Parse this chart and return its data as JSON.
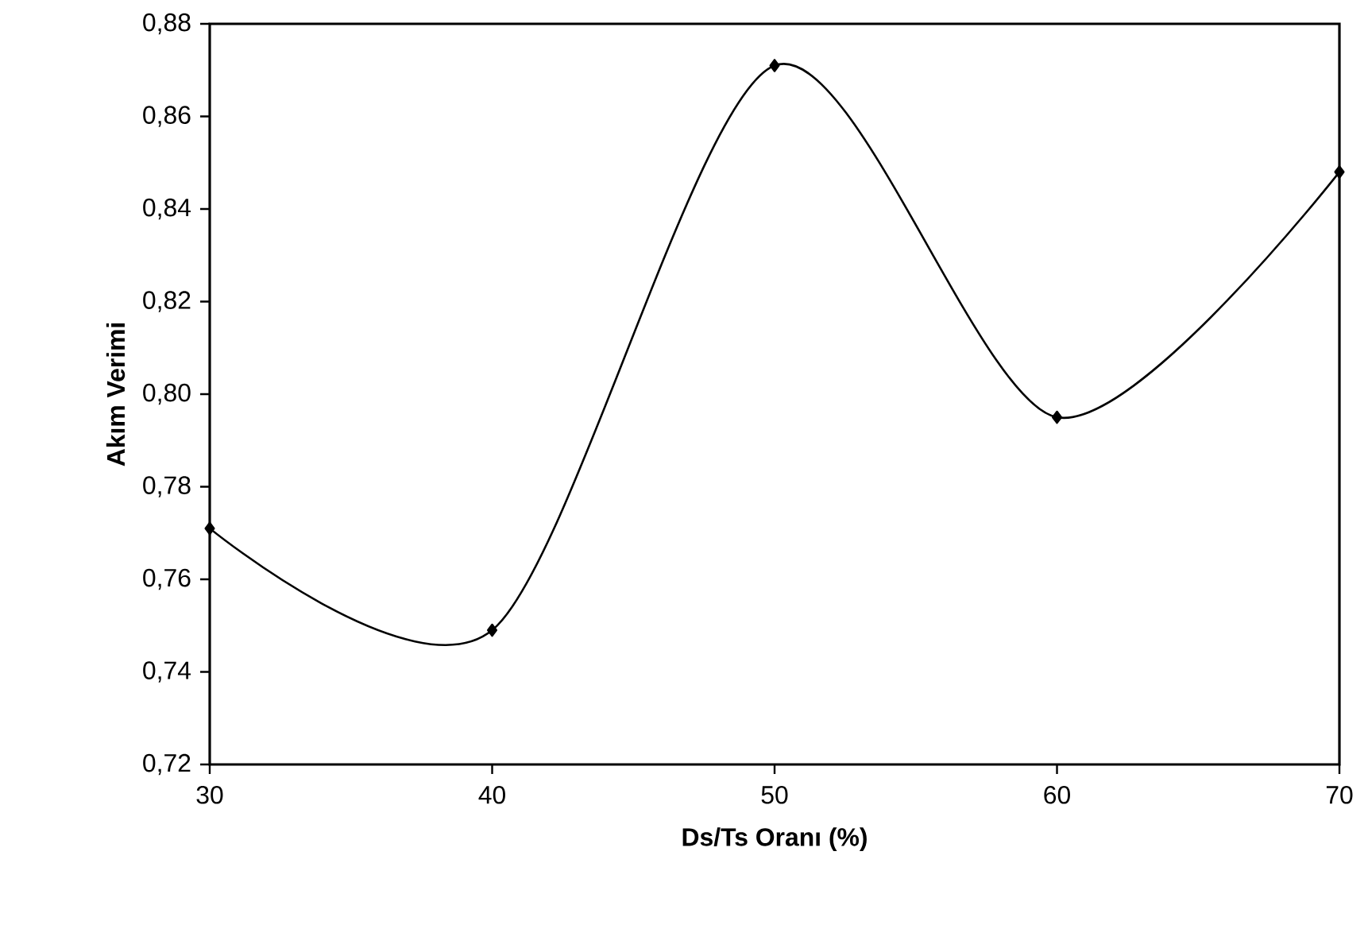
{
  "chart_data": {
    "type": "line",
    "xlabel": "Ds/Ts Oranı (%)",
    "ylabel": "Akım Verimi",
    "x": [
      30,
      40,
      50,
      60,
      70
    ],
    "series": [
      {
        "color": "#000000",
        "values": [
          0.771,
          0.749,
          0.871,
          0.795,
          0.848
        ]
      }
    ],
    "xlim": [
      30,
      70
    ],
    "xticks": [
      30,
      40,
      50,
      60,
      70
    ],
    "ylim": [
      0.72,
      0.88
    ],
    "yticks": [
      {
        "value": 0.72,
        "label": "0,72"
      },
      {
        "value": 0.74,
        "label": "0,74"
      },
      {
        "value": 0.76,
        "label": "0,76"
      },
      {
        "value": 0.78,
        "label": "0,78"
      },
      {
        "value": 0.8,
        "label": "0,80"
      },
      {
        "value": 0.82,
        "label": "0,82"
      },
      {
        "value": 0.84,
        "label": "0,84"
      },
      {
        "value": 0.86,
        "label": "0,86"
      },
      {
        "value": 0.88,
        "label": "0,88"
      }
    ],
    "marker": "diamond",
    "line_style": "solid"
  }
}
